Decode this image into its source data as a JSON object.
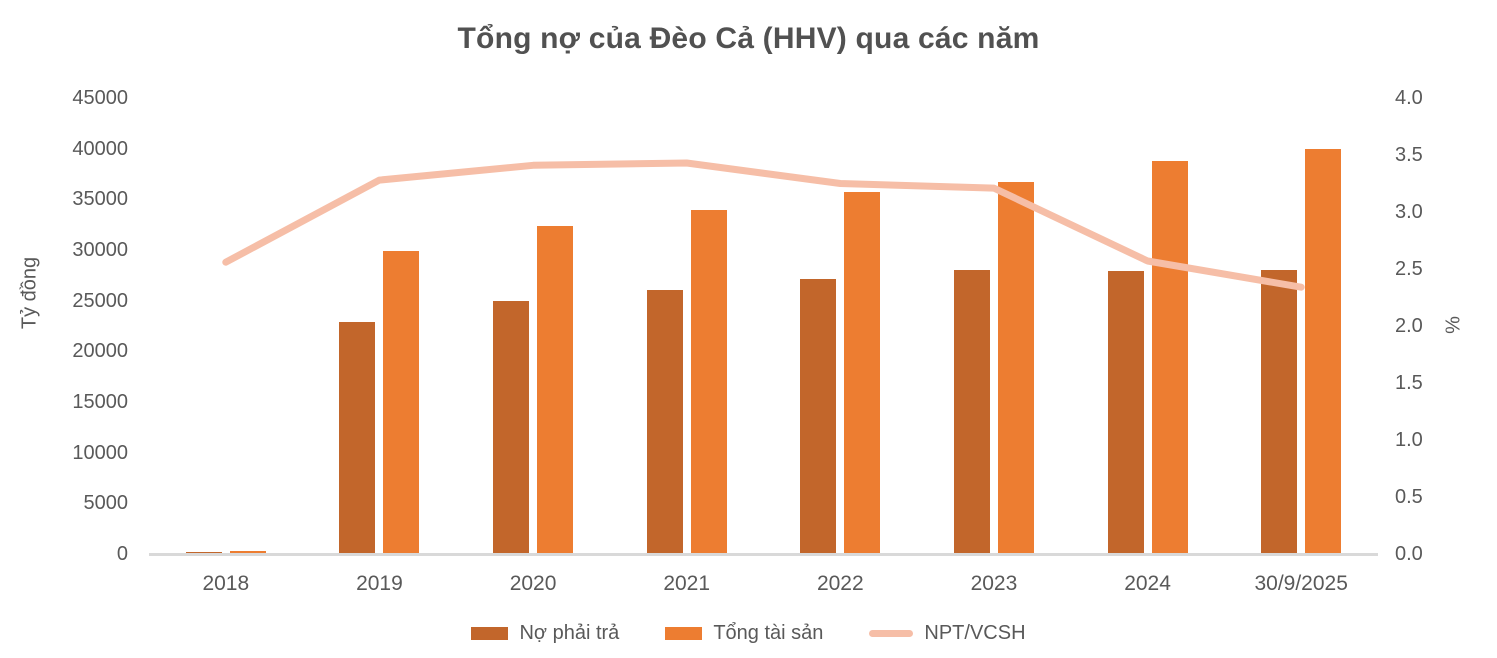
{
  "title": "Tổng nợ của Đèo Cả (HHV) qua các năm",
  "axes": {
    "left": {
      "title": "Tỷ đồng",
      "max": 45000,
      "ticks": [
        0,
        5000,
        10000,
        15000,
        20000,
        25000,
        30000,
        35000,
        40000,
        45000
      ]
    },
    "right": {
      "title": "%",
      "max": 4.0,
      "ticks": [
        "0.0",
        "0.5",
        "1.0",
        "1.5",
        "2.0",
        "2.5",
        "3.0",
        "3.5",
        "4.0"
      ]
    }
  },
  "chart_data": {
    "type": "combo-bar-line",
    "title": "Tổng nợ của Đèo Cả (HHV) qua các năm",
    "categories": [
      "2018",
      "2019",
      "2020",
      "2021",
      "2022",
      "2023",
      "2024",
      "30/9/2025"
    ],
    "series": [
      {
        "id": "no-phai-tra",
        "name": "Nợ phải trả",
        "type": "bar",
        "axis": "left",
        "color": "#C2662B",
        "values": [
          200,
          22900,
          25000,
          26100,
          27100,
          28000,
          27900,
          28000
        ]
      },
      {
        "id": "tong-tai-san",
        "name": "Tổng tài sản",
        "type": "bar",
        "axis": "left",
        "color": "#ED7D31",
        "values": [
          300,
          29900,
          32400,
          33900,
          35700,
          36700,
          38800,
          40000
        ]
      },
      {
        "id": "npt-vcsh",
        "name": "NPT/VCSH",
        "type": "line",
        "axis": "right",
        "color": "#F6BEA7",
        "values": [
          2.56,
          3.28,
          3.41,
          3.43,
          3.25,
          3.21,
          2.57,
          2.34
        ]
      }
    ],
    "ylabel_left": "Tỷ đồng",
    "ylabel_right": "%",
    "ylim_left": [
      0,
      45000
    ],
    "ylim_right": [
      0.0,
      4.0
    ],
    "grid": false,
    "legend_position": "bottom"
  },
  "colors": {
    "text": "#595959",
    "title_text": "#515151",
    "axis_line": "#D9D9D9",
    "bar_dark": "#C2662B",
    "bar_orange": "#ED7D31",
    "line_salmon": "#F6BEA7"
  }
}
